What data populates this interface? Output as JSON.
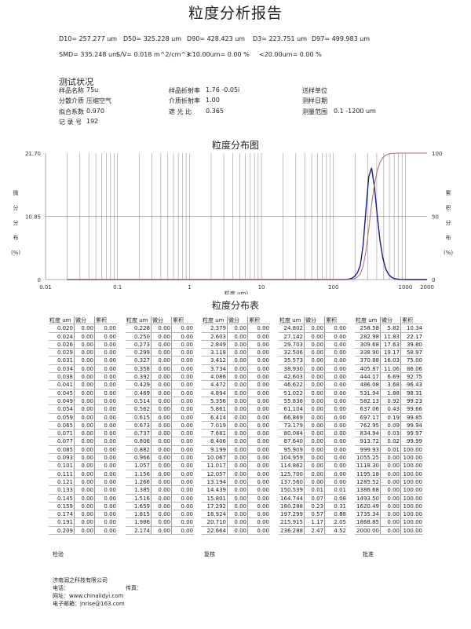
{
  "title": "粒度分析报告",
  "stats": {
    "line1": [
      "D10=  257.277  um",
      "D50=  325.228  um",
      "D90=  428.423  um",
      "D3= 223.751  um",
      "D97= 499.983  um"
    ],
    "line2": [
      "SMD= 335.248 um",
      "S/V= 0.018 m^2/cm^3",
      "<10.00um= 0.00 %",
      "<20.00um= 0.00 %"
    ]
  },
  "test": {
    "heading": "测试状况",
    "rows": [
      [
        {
          "label": "样品名称",
          "value": "75u"
        },
        {
          "label": "样品折射率",
          "value": "1.76 -0.05i"
        },
        {
          "label": "送样单位",
          "value": ""
        }
      ],
      [
        {
          "label": "分散介质",
          "value": "压缩空气"
        },
        {
          "label": "介质折射率",
          "value": "1.00"
        },
        {
          "label": "测样日期",
          "value": ""
        }
      ],
      [
        {
          "label": "拟合系数",
          "value": "0.970"
        },
        {
          "label": "遮 光 比",
          "value": "0.365"
        },
        {
          "label": "测量范围",
          "value": "0.1 -1200 um"
        }
      ],
      [
        {
          "label": "记 录 号",
          "value": "192"
        }
      ]
    ]
  },
  "chart_data": {
    "type": "line",
    "title": "粒度分布图",
    "xlabel": "粒度 um)",
    "ylabel_left": [
      "微",
      "分",
      "分",
      "布",
      "(%)"
    ],
    "ylabel_right": [
      "累",
      "积",
      "分",
      "布",
      "(%)"
    ],
    "x_scale": "log",
    "xlim": [
      0.01,
      2000
    ],
    "x_ticks": [
      "0.01",
      "0.1",
      "1",
      "10",
      "100",
      "1000",
      "2000"
    ],
    "ylim_left": [
      0,
      21.7
    ],
    "y_ticks_left": [
      "0",
      "10.85",
      "21.70"
    ],
    "ylim_right": [
      0,
      100
    ],
    "y_ticks_right": [
      "0",
      "50",
      "100"
    ],
    "grid": true,
    "colors": {
      "differential": "#1a1a8c",
      "cumulative": "#b06a6a",
      "grid": "#999999"
    },
    "x": [
      0.02,
      125.7,
      137.56,
      150.539,
      164.744,
      180.288,
      197.299,
      215.915,
      236.288,
      258.58,
      282.98,
      309.68,
      338.9,
      370.88,
      405.87,
      444.17,
      486.08,
      531.94,
      582.13,
      637.06,
      697.17,
      762.95,
      834.94,
      913.72,
      999.93,
      1055.25,
      2000
    ],
    "series": [
      {
        "key": "differential",
        "axis": "left",
        "values": [
          0,
          0,
          0,
          0.01,
          0.07,
          0.23,
          0.57,
          1.17,
          2.47,
          5.82,
          11.83,
          17.63,
          19.17,
          16.03,
          11.06,
          6.69,
          3.68,
          1.88,
          0.92,
          0.43,
          0.19,
          0.09,
          0.03,
          0.02,
          0.01,
          0,
          0
        ]
      },
      {
        "key": "cumulative",
        "axis": "right",
        "values": [
          0,
          0,
          0,
          0.01,
          0.08,
          0.31,
          0.88,
          2.05,
          4.52,
          10.34,
          22.17,
          39.8,
          58.97,
          75.0,
          86.06,
          92.75,
          96.43,
          98.31,
          99.23,
          99.66,
          99.85,
          99.94,
          99.97,
          99.99,
          100,
          100,
          100
        ]
      }
    ]
  },
  "table": {
    "title": "粒度分布表",
    "headers": [
      "粒度 um",
      "微分",
      "累积"
    ],
    "groups": [
      {
        "sizes": [
          "0.020",
          "0.024",
          "0.026",
          "0.029",
          "0.031",
          "0.034",
          "0.038",
          "0.041",
          "0.045",
          "0.049",
          "0.054",
          "0.059",
          "0.065",
          "0.071",
          "0.077",
          "0.085",
          "0.093",
          "0.101",
          "0.111",
          "0.121",
          "0.133",
          "0.145",
          "0.159",
          "0.174",
          "0.191",
          "0.209"
        ],
        "diff": [
          "0.00",
          "0.00",
          "0.00",
          "0.00",
          "0.00",
          "0.00",
          "0.00",
          "0.00",
          "0.00",
          "0.00",
          "0.00",
          "0.00",
          "0.00",
          "0.00",
          "0.00",
          "0.00",
          "0.00",
          "0.00",
          "0.00",
          "0.00",
          "0.00",
          "0.00",
          "0.00",
          "0.00",
          "0.00",
          "0.00"
        ],
        "cum": [
          "0.00",
          "0.00",
          "0.00",
          "0.00",
          "0.00",
          "0.00",
          "0.00",
          "0.00",
          "0.00",
          "0.00",
          "0.00",
          "0.00",
          "0.00",
          "0.00",
          "0.00",
          "0.00",
          "0.00",
          "0.00",
          "0.00",
          "0.00",
          "0.00",
          "0.00",
          "0.00",
          "0.00",
          "0.00",
          "0.00"
        ]
      },
      {
        "sizes": [
          "0.228",
          "0.250",
          "0.273",
          "0.299",
          "0.327",
          "0.358",
          "0.392",
          "0.429",
          "0.469",
          "0.514",
          "0.562",
          "0.615",
          "0.673",
          "0.737",
          "0.806",
          "0.882",
          "0.966",
          "1.057",
          "1.156",
          "1.266",
          "1.385",
          "1.516",
          "1.659",
          "1.815",
          "1.986",
          "2.174"
        ],
        "diff": [
          "0.00",
          "0.00",
          "0.00",
          "0.00",
          "0.00",
          "0.00",
          "0.00",
          "0.00",
          "0.00",
          "0.00",
          "0.00",
          "0.00",
          "0.00",
          "0.00",
          "0.00",
          "0.00",
          "0.00",
          "0.00",
          "0.00",
          "0.00",
          "0.00",
          "0.00",
          "0.00",
          "0.00",
          "0.00",
          "0.00"
        ],
        "cum": [
          "0.00",
          "0.00",
          "0.00",
          "0.00",
          "0.00",
          "0.00",
          "0.00",
          "0.00",
          "0.00",
          "0.00",
          "0.00",
          "0.00",
          "0.00",
          "0.00",
          "0.00",
          "0.00",
          "0.00",
          "0.00",
          "0.00",
          "0.00",
          "0.00",
          "0.00",
          "0.00",
          "0.00",
          "0.00",
          "0.00"
        ]
      },
      {
        "sizes": [
          "2.379",
          "2.603",
          "2.849",
          "3.118",
          "3.412",
          "3.734",
          "4.086",
          "4.472",
          "4.894",
          "5.356",
          "5.861",
          "6.414",
          "7.019",
          "7.681",
          "8.406",
          "9.199",
          "10.067",
          "11.017",
          "12.057",
          "13.194",
          "14.439",
          "15.801",
          "17.292",
          "18.924",
          "20.710",
          "22.664"
        ],
        "diff": [
          "0.00",
          "0.00",
          "0.00",
          "0.00",
          "0.00",
          "0.00",
          "0.00",
          "0.00",
          "0.00",
          "0.00",
          "0.00",
          "0.00",
          "0.00",
          "0.00",
          "0.00",
          "0.00",
          "0.00",
          "0.00",
          "0.00",
          "0.00",
          "0.00",
          "0.00",
          "0.00",
          "0.00",
          "0.00",
          "0.00"
        ],
        "cum": [
          "0.00",
          "0.00",
          "0.00",
          "0.00",
          "0.00",
          "0.00",
          "0.00",
          "0.00",
          "0.00",
          "0.00",
          "0.00",
          "0.00",
          "0.00",
          "0.00",
          "0.00",
          "0.00",
          "0.00",
          "0.00",
          "0.00",
          "0.00",
          "0.00",
          "0.00",
          "0.00",
          "0.00",
          "0.00",
          "0.00"
        ]
      },
      {
        "sizes": [
          "24.802",
          "27.142",
          "29.703",
          "32.506",
          "35.573",
          "38.930",
          "42.603",
          "46.622",
          "51.022",
          "55.836",
          "61.104",
          "66.869",
          "73.179",
          "80.084",
          "87.640",
          "95.909",
          "104.959",
          "114.862",
          "125.700",
          "137.560",
          "150.539",
          "164.744",
          "180.288",
          "197.299",
          "215.915",
          "236.288"
        ],
        "diff": [
          "0.00",
          "0.00",
          "0.00",
          "0.00",
          "0.00",
          "0.00",
          "0.00",
          "0.00",
          "0.00",
          "0.00",
          "0.00",
          "0.00",
          "0.00",
          "0.00",
          "0.00",
          "0.00",
          "0.00",
          "0.00",
          "0.00",
          "0.00",
          "0.01",
          "0.07",
          "0.23",
          "0.57",
          "1.17",
          "2.47"
        ],
        "cum": [
          "0.00",
          "0.00",
          "0.00",
          "0.00",
          "0.00",
          "0.00",
          "0.00",
          "0.00",
          "0.00",
          "0.00",
          "0.00",
          "0.00",
          "0.00",
          "0.00",
          "0.00",
          "0.00",
          "0.00",
          "0.00",
          "0.00",
          "0.00",
          "0.01",
          "0.08",
          "0.31",
          "0.88",
          "2.05",
          "4.52"
        ]
      },
      {
        "sizes": [
          "258.58",
          "282.98",
          "309.68",
          "338.90",
          "370.88",
          "405.87",
          "444.17",
          "486.08",
          "531.94",
          "582.13",
          "637.06",
          "697.17",
          "762.95",
          "834.94",
          "913.72",
          "999.93",
          "1055.25",
          "1118.30",
          "1195.18",
          "1285.52",
          "1386.68",
          "1493.50",
          "1620.49",
          "1735.34",
          "1868.85",
          "2000.00"
        ],
        "diff": [
          "5.82",
          "11.83",
          "17.63",
          "19.17",
          "16.03",
          "11.06",
          "6.69",
          "3.68",
          "1.88",
          "0.92",
          "0.43",
          "0.19",
          "0.09",
          "0.03",
          "0.02",
          "0.01",
          "0.00",
          "0.00",
          "0.00",
          "0.00",
          "0.00",
          "0.00",
          "0.00",
          "0.00",
          "0.00",
          "0.00"
        ],
        "cum": [
          "10.34",
          "22.17",
          "39.80",
          "58.97",
          "75.00",
          "86.06",
          "92.75",
          "96.43",
          "98.31",
          "99.23",
          "99.66",
          "99.85",
          "99.94",
          "99.97",
          "99.99",
          "100.00",
          "100.00",
          "100.00",
          "100.00",
          "100.00",
          "100.00",
          "100.00",
          "100.00",
          "100.00",
          "100.00",
          "100.00"
        ]
      }
    ]
  },
  "signoff": [
    "检验",
    "复核",
    "批准"
  ],
  "company": {
    "name": "济南润之科技有限公司",
    "phone_label": "电话：",
    "fax_label": "传真：",
    "website": "网址：www.chinalidyi.com",
    "email": "电子邮箱：jnrise@163.com"
  }
}
